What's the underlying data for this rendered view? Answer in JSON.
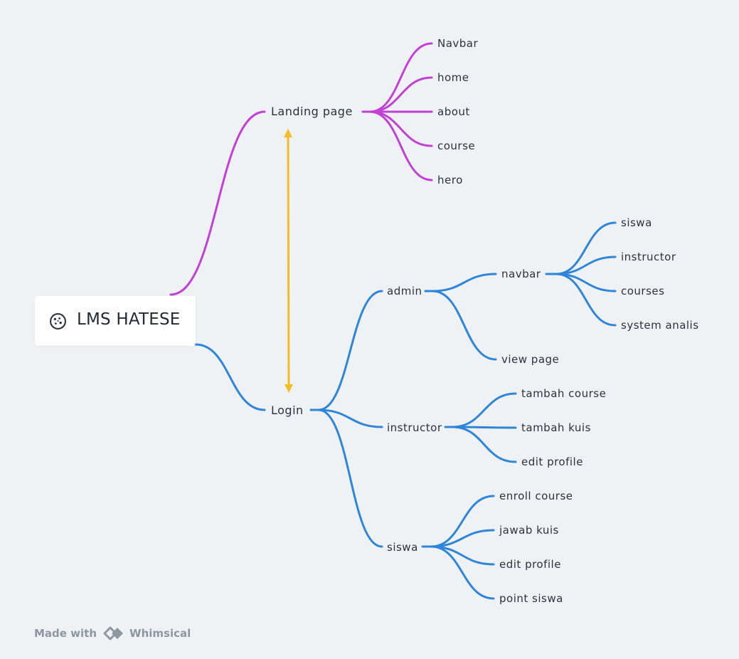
{
  "root": {
    "label": "LMS HATESE",
    "icon": "cookie-icon"
  },
  "colors": {
    "purple": "#c241d4",
    "blue": "#2f86d8",
    "yellow": "#f5bd24",
    "background": "#eff2f5"
  },
  "branches": {
    "landing": {
      "label": "Landing page",
      "children": [
        "Navbar",
        "home",
        "about",
        "course",
        "hero"
      ]
    },
    "login": {
      "label": "Login",
      "admin": {
        "label": "admin",
        "navbar": {
          "label": "navbar",
          "children": [
            "siswa",
            "instructor",
            "courses",
            "system analis"
          ]
        },
        "view_page": "view page"
      },
      "instructor": {
        "label": "instructor",
        "children": [
          "tambah course",
          "tambah kuis",
          "edit profile"
        ]
      },
      "siswa": {
        "label": "siswa",
        "children": [
          "enroll course",
          "jawab kuis",
          "edit profile",
          "point siswa"
        ]
      }
    }
  },
  "connector": {
    "type": "bidirectional-arrow",
    "from": "Landing page",
    "to": "Login"
  },
  "footer": {
    "made_with": "Made with",
    "brand": "Whimsical"
  }
}
